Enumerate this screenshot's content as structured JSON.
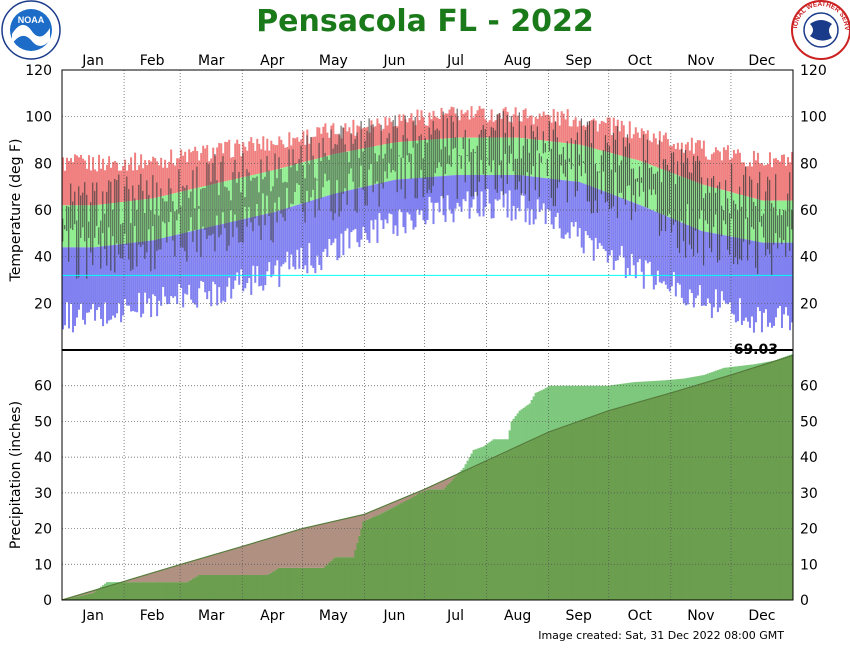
{
  "title": "Pensacola FL - 2022",
  "footer": "Image created: Sat, 31 Dec 2022 08:00 GMT",
  "logos": {
    "left": "NOAA",
    "right": "NATIONAL WEATHER SERVICE"
  },
  "colors": {
    "title": "#1a7a1a",
    "record_high": "#f08080",
    "normal_range": "#90ee90",
    "record_low": "#8080f0",
    "observed": "#3a3a3a",
    "precip_observed": "#7ec87e",
    "precip_normal": "#b09080",
    "precip_overlap": "#6b9e4e",
    "freeze_line": "#00ffff"
  },
  "chart_data": [
    {
      "type": "area",
      "panel": "temperature",
      "ylabel": "Temperature (deg F)",
      "ylim": [
        0,
        120
      ],
      "yticks": [
        20,
        40,
        60,
        80,
        100,
        120
      ],
      "x_ticks": [
        "Jan",
        "Feb",
        "Mar",
        "Apr",
        "May",
        "Jun",
        "Jul",
        "Aug",
        "Sep",
        "Oct",
        "Nov",
        "Dec"
      ],
      "freeze_line": 32,
      "record_high_by_month": [
        80,
        81,
        85,
        89,
        94,
        99,
        101,
        101,
        99,
        93,
        86,
        81
      ],
      "normal_high_by_month": [
        62,
        65,
        71,
        77,
        84,
        89,
        91,
        91,
        88,
        81,
        71,
        64
      ],
      "normal_low_by_month": [
        44,
        47,
        53,
        59,
        67,
        73,
        75,
        75,
        72,
        62,
        51,
        46
      ],
      "record_low_by_month": [
        14,
        20,
        25,
        33,
        43,
        55,
        62,
        62,
        48,
        33,
        22,
        13
      ],
      "observed_high_by_month": [
        63,
        66,
        73,
        79,
        86,
        92,
        93,
        91,
        89,
        83,
        72,
        66
      ],
      "observed_low_by_month": [
        42,
        45,
        53,
        58,
        66,
        75,
        76,
        75,
        72,
        60,
        48,
        44
      ]
    },
    {
      "type": "area",
      "panel": "precipitation",
      "ylabel": "Precipitation (inches)",
      "ylim": [
        0,
        70
      ],
      "yticks": [
        0,
        10,
        20,
        30,
        40,
        50,
        60
      ],
      "x_ticks": [
        "Jan",
        "Feb",
        "Mar",
        "Apr",
        "May",
        "Jun",
        "Jul",
        "Aug",
        "Sep",
        "Oct",
        "Nov",
        "Dec"
      ],
      "total_label": "69.03",
      "observed_cumulative": [
        [
          0,
          0
        ],
        [
          15,
          2
        ],
        [
          22,
          5
        ],
        [
          62,
          5
        ],
        [
          68,
          7
        ],
        [
          102,
          7
        ],
        [
          108,
          9
        ],
        [
          130,
          9
        ],
        [
          136,
          12
        ],
        [
          145,
          12
        ],
        [
          150,
          22
        ],
        [
          158,
          24
        ],
        [
          165,
          26
        ],
        [
          172,
          28
        ],
        [
          178,
          30
        ],
        [
          183,
          31
        ],
        [
          190,
          31
        ],
        [
          195,
          34
        ],
        [
          200,
          37
        ],
        [
          205,
          42
        ],
        [
          210,
          43
        ],
        [
          215,
          45
        ],
        [
          222,
          45
        ],
        [
          224,
          50
        ],
        [
          228,
          53
        ],
        [
          233,
          55
        ],
        [
          236,
          58
        ],
        [
          240,
          59
        ],
        [
          243,
          60
        ],
        [
          272,
          60
        ],
        [
          285,
          61
        ],
        [
          300,
          61.5
        ],
        [
          310,
          62
        ],
        [
          320,
          63
        ],
        [
          330,
          65
        ],
        [
          345,
          66
        ],
        [
          355,
          67
        ],
        [
          365,
          69.03
        ]
      ],
      "normal_cumulative": [
        [
          0,
          0
        ],
        [
          31,
          5.2
        ],
        [
          59,
          9.9
        ],
        [
          90,
          15
        ],
        [
          120,
          20
        ],
        [
          151,
          24
        ],
        [
          181,
          31
        ],
        [
          212,
          39
        ],
        [
          243,
          47
        ],
        [
          273,
          53
        ],
        [
          304,
          58
        ],
        [
          334,
          63
        ],
        [
          365,
          68.5
        ]
      ]
    }
  ]
}
